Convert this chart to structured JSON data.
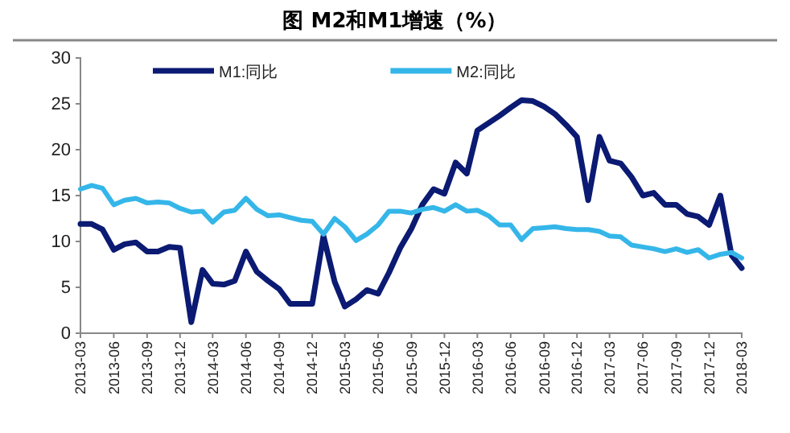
{
  "chart_data": {
    "type": "line",
    "title": "图  M2和M1增速（%）",
    "x": [
      "2013-03",
      "2013-04",
      "2013-05",
      "2013-06",
      "2013-07",
      "2013-08",
      "2013-09",
      "2013-10",
      "2013-11",
      "2013-12",
      "2014-01",
      "2014-02",
      "2014-03",
      "2014-04",
      "2014-05",
      "2014-06",
      "2014-07",
      "2014-08",
      "2014-09",
      "2014-10",
      "2014-11",
      "2014-12",
      "2015-01",
      "2015-02",
      "2015-03",
      "2015-04",
      "2015-05",
      "2015-06",
      "2015-07",
      "2015-08",
      "2015-09",
      "2015-10",
      "2015-11",
      "2015-12",
      "2016-01",
      "2016-02",
      "2016-03",
      "2016-04",
      "2016-05",
      "2016-06",
      "2016-07",
      "2016-08",
      "2016-09",
      "2016-10",
      "2016-11",
      "2016-12",
      "2017-01",
      "2017-02",
      "2017-03",
      "2017-04",
      "2017-05",
      "2017-06",
      "2017-07",
      "2017-08",
      "2017-09",
      "2017-10",
      "2017-11",
      "2017-12",
      "2018-01",
      "2018-02",
      "2018-03"
    ],
    "series": [
      {
        "name": "M1:同比",
        "color": "#0b1a72",
        "values": [
          11.9,
          11.9,
          11.3,
          9.1,
          9.7,
          9.9,
          8.9,
          8.9,
          9.4,
          9.3,
          1.2,
          6.9,
          5.4,
          5.3,
          5.7,
          8.9,
          6.7,
          5.7,
          4.8,
          3.2,
          3.2,
          3.2,
          10.6,
          5.6,
          2.9,
          3.7,
          4.7,
          4.3,
          6.6,
          9.3,
          11.4,
          14.0,
          15.7,
          15.2,
          18.6,
          17.4,
          22.1,
          22.9,
          23.7,
          24.6,
          25.4,
          25.3,
          24.7,
          23.9,
          22.7,
          21.4,
          14.5,
          21.4,
          18.8,
          18.5,
          17.0,
          15.0,
          15.3,
          14.0,
          14.0,
          13.0,
          12.7,
          11.8,
          15.0,
          8.5,
          7.1
        ]
      },
      {
        "name": "M2:同比",
        "color": "#35b6e9",
        "values": [
          15.7,
          16.1,
          15.8,
          14.0,
          14.5,
          14.7,
          14.2,
          14.3,
          14.2,
          13.6,
          13.2,
          13.3,
          12.1,
          13.2,
          13.4,
          14.7,
          13.5,
          12.8,
          12.9,
          12.6,
          12.3,
          12.2,
          10.8,
          12.5,
          11.6,
          10.1,
          10.8,
          11.8,
          13.3,
          13.3,
          13.1,
          13.5,
          13.7,
          13.3,
          14.0,
          13.3,
          13.4,
          12.8,
          11.8,
          11.8,
          10.2,
          11.4,
          11.5,
          11.6,
          11.4,
          11.3,
          11.3,
          11.1,
          10.6,
          10.5,
          9.6,
          9.4,
          9.2,
          8.9,
          9.2,
          8.8,
          9.1,
          8.2,
          8.6,
          8.8,
          8.2
        ]
      }
    ],
    "xlim": [
      "2013-03",
      "2018-03"
    ],
    "xticks": [
      {
        "value": "2013-03",
        "label": "2013-03"
      },
      {
        "value": "2013-06",
        "label": "2013-06"
      },
      {
        "value": "2013-09",
        "label": "2013-09"
      },
      {
        "value": "2013-12",
        "label": "2013-12"
      },
      {
        "value": "2014-03",
        "label": "2014-03"
      },
      {
        "value": "2014-06",
        "label": "2014-06"
      },
      {
        "value": "2014-09",
        "label": "2014-09"
      },
      {
        "value": "2014-12",
        "label": "2014-12"
      },
      {
        "value": "2015-03",
        "label": "2015-03"
      },
      {
        "value": "2015-06",
        "label": "2015-06"
      },
      {
        "value": "2015-09",
        "label": "2015-09"
      },
      {
        "value": "2015-12",
        "label": "2015-12"
      },
      {
        "value": "2016-03",
        "label": "2016-03"
      },
      {
        "value": "2016-06",
        "label": "2016-06"
      },
      {
        "value": "2016-09",
        "label": "2016-09"
      },
      {
        "value": "2016-12",
        "label": "2016-12"
      },
      {
        "value": "2017-03",
        "label": "2017-03"
      },
      {
        "value": "2017-06",
        "label": "2017-06"
      },
      {
        "value": "2017-09",
        "label": "2017-09"
      },
      {
        "value": "2017-12",
        "label": "2017-12"
      },
      {
        "value": "2018-03",
        "label": "2018-03"
      }
    ],
    "ylim": [
      0,
      30
    ],
    "yticks": [
      0,
      5,
      10,
      15,
      20,
      25,
      30
    ],
    "grid": false,
    "legend": "top",
    "marker": "none",
    "line_style": "solid"
  }
}
